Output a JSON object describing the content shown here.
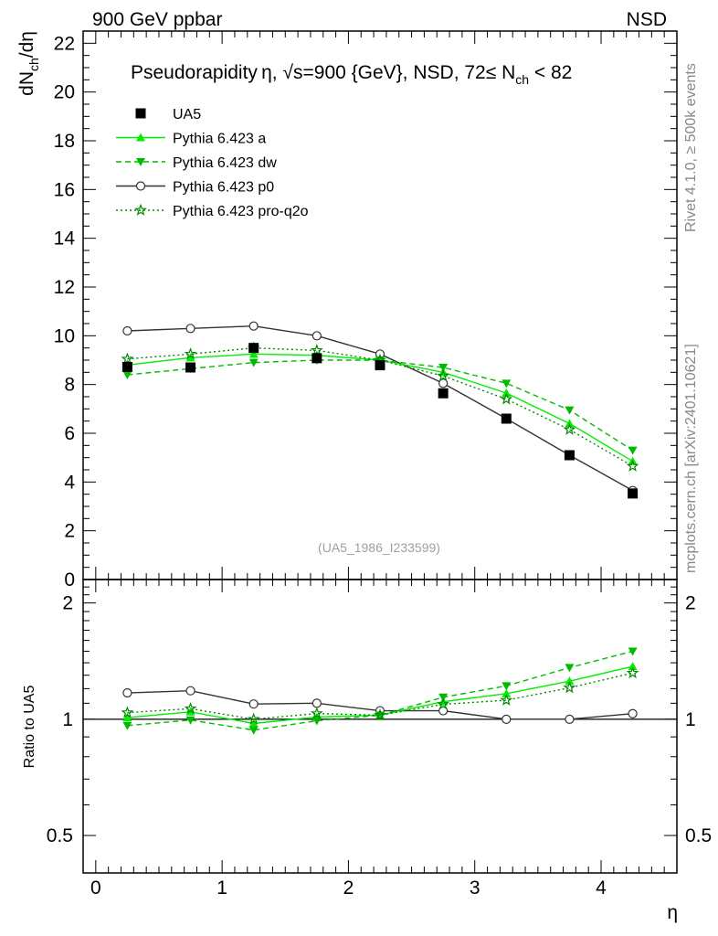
{
  "header": {
    "left": "900 GeV ppbar",
    "right": "NSD"
  },
  "side_labels": {
    "upper": "Rivet 4.1.0, ≥ 500k events",
    "lower": "mcplots.cern.ch [arXiv:2401.10621]"
  },
  "chart_data": [
    {
      "type": "line",
      "title": "Pseudorapidity η, √s=900 {GeV}, NSD, 72≤ N_ch < 82",
      "title_parts": {
        "main": "Pseudorapidity η, √s=900 {GeV}, NSD, 72≤ N",
        "sub": "ch",
        "tail": " < 82"
      },
      "ylabel": "dN_ch/dη",
      "ylabel_parts": {
        "a": "dN",
        "sub": "ch",
        "b": "/dη"
      },
      "xlabel": "η",
      "xlim": [
        -0.1,
        4.6
      ],
      "ylim": [
        0,
        22.5
      ],
      "yticks": [
        0,
        2,
        4,
        6,
        8,
        10,
        12,
        14,
        16,
        18,
        20,
        22
      ],
      "xticks": [
        0,
        1,
        2,
        3,
        4
      ],
      "watermark": "(UA5_1986_I233599)",
      "x": [
        0.25,
        0.75,
        1.25,
        1.75,
        2.25,
        2.75,
        3.25,
        3.75,
        4.25
      ],
      "series": [
        {
          "name": "UA5",
          "color": "#000000",
          "marker": "square",
          "values": [
            8.72,
            8.7,
            9.5,
            9.08,
            8.79,
            7.64,
            6.6,
            5.1,
            3.53
          ]
        },
        {
          "name": "Pythia 6.423 a",
          "color": "#00ee00",
          "marker": "triangle-up",
          "dash": "solid",
          "values": [
            8.8,
            9.1,
            9.25,
            9.2,
            9.0,
            8.5,
            7.65,
            6.4,
            4.85
          ]
        },
        {
          "name": "Pythia 6.423 dw",
          "color": "#00bb00",
          "marker": "triangle-down",
          "dash": "dashed",
          "values": [
            8.4,
            8.65,
            8.9,
            9.0,
            9.0,
            8.7,
            8.05,
            6.95,
            5.3
          ]
        },
        {
          "name": "Pythia 6.423 p0",
          "color": "#333333",
          "marker": "circle-open",
          "dash": "solid",
          "values": [
            10.2,
            10.3,
            10.4,
            10.0,
            9.25,
            8.05,
            6.6,
            5.1,
            3.65
          ]
        },
        {
          "name": "Pythia 6.423 pro-q2o",
          "color": "#008800",
          "marker": "star-open",
          "dash": "dotted",
          "values": [
            9.05,
            9.25,
            9.5,
            9.4,
            9.0,
            8.35,
            7.4,
            6.15,
            4.65
          ]
        }
      ]
    },
    {
      "type": "line",
      "ylabel": "Ratio to UA5",
      "xlabel": "η",
      "yscale": "log",
      "ylim": [
        0.4,
        2.3
      ],
      "yticks": [
        0.5,
        1,
        2
      ],
      "ytick_labels": [
        "0.5",
        "1",
        "2"
      ],
      "x": [
        0.25,
        0.75,
        1.25,
        1.75,
        2.25,
        2.75,
        3.25,
        3.75,
        4.25
      ],
      "series": [
        {
          "name": "Pythia 6.423 a",
          "values": [
            1.01,
            1.045,
            0.975,
            1.013,
            1.025,
            1.11,
            1.165,
            1.255,
            1.37
          ]
        },
        {
          "name": "Pythia 6.423 dw",
          "values": [
            0.963,
            0.995,
            0.937,
            0.991,
            1.024,
            1.14,
            1.22,
            1.36,
            1.5
          ]
        },
        {
          "name": "Pythia 6.423 p0",
          "values": [
            1.17,
            1.185,
            1.095,
            1.1,
            1.052,
            1.052,
            1.0,
            1.0,
            1.034
          ]
        },
        {
          "name": "Pythia 6.423 pro-q2o",
          "values": [
            1.04,
            1.065,
            1.0,
            1.035,
            1.024,
            1.093,
            1.12,
            1.206,
            1.317
          ]
        }
      ]
    }
  ]
}
